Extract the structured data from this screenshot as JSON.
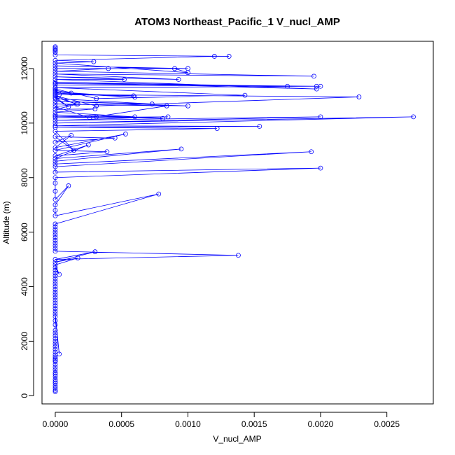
{
  "chart_data": {
    "type": "line",
    "title": "ATOM3 Northeast_Pacific_1 V_nucl_AMP",
    "xlabel": "V_nucl_AMP",
    "ylabel": "Altitude (m)",
    "xlim": [
      -0.0001,
      0.00285
    ],
    "ylim": [
      -300,
      13000
    ],
    "xticks": [
      0,
      0.0005,
      0.001,
      0.0015,
      0.002,
      0.0025
    ],
    "xtick_labels": [
      "0.0000",
      "0.0005",
      "0.0010",
      "0.0015",
      "0.0020",
      "0.0025"
    ],
    "yticks": [
      0,
      2000,
      4000,
      6000,
      8000,
      10000,
      12000
    ],
    "ytick_labels": [
      "0",
      "2000",
      "4000",
      "6000",
      "8000",
      "10000",
      "12000"
    ],
    "grid": false,
    "marker": "open-circle",
    "series_color": "#0000ff",
    "series": [
      {
        "x": [
          0,
          0,
          0,
          0,
          0,
          0,
          0,
          0,
          0,
          0,
          0,
          0,
          0,
          0,
          0,
          0,
          0,
          0,
          0,
          0,
          0,
          0,
          0,
          0,
          0,
          0,
          0,
          0,
          0,
          0,
          3e-05,
          0,
          0,
          0,
          0,
          0,
          0,
          0,
          0,
          0,
          0,
          0,
          0,
          0,
          0,
          0,
          0,
          0,
          0,
          3e-05,
          0,
          0.00017,
          0,
          0.0003,
          0,
          0.00138,
          0,
          0,
          0,
          0,
          0,
          0,
          0,
          0,
          0,
          0,
          0,
          0.00078,
          0,
          0,
          0,
          0.0001,
          0,
          0,
          0,
          0,
          0.002,
          0,
          0,
          0.00193,
          0,
          0,
          0.00095,
          0,
          0.00025,
          0,
          0.00039,
          0,
          0.00053,
          0,
          0.00012,
          0,
          0.00045,
          0,
          0.00014,
          0,
          0.00122,
          0,
          0.00154,
          0,
          0.0027,
          0,
          0.002,
          0,
          0.00085,
          0,
          0.00031,
          0,
          0.00081,
          0,
          0.0006,
          0,
          0.0003,
          0,
          0.00017,
          0,
          0.00026,
          0.00084,
          0,
          0.001,
          0,
          0.00073,
          0,
          0.0001,
          0,
          0.00016,
          0,
          0.00031,
          0.00229,
          0,
          0.00059,
          0,
          0.0006,
          0,
          0.00012,
          0,
          3e-05,
          0,
          0.00031,
          0.00143,
          0,
          0.00197,
          0,
          0.002,
          0,
          0.00175,
          0,
          0.00197,
          0,
          0.00052,
          0,
          0.00093,
          0,
          0.00195,
          0,
          0.0004,
          0,
          0.001,
          0,
          0.0009,
          0.001,
          0,
          0.00029,
          0,
          0.0012,
          0.00131,
          0,
          0,
          0,
          0,
          0,
          0
        ],
        "y": [
          150,
          200,
          280,
          360,
          450,
          520,
          600,
          700,
          780,
          850,
          950,
          1050,
          1150,
          1250,
          1300,
          1350,
          1420,
          1500,
          1600,
          1700,
          1800,
          1900,
          2000,
          2100,
          2200,
          2300,
          2400,
          2600,
          2750,
          2900,
          1530,
          3000,
          3100,
          3200,
          3300,
          3400,
          3500,
          3600,
          3700,
          3800,
          3900,
          4000,
          4100,
          4200,
          4300,
          4400,
          4500,
          4600,
          4700,
          4450,
          4800,
          5050,
          4900,
          5280,
          5000,
          5150,
          5300,
          5400,
          5500,
          5600,
          5700,
          5800,
          5900,
          6000,
          6100,
          6200,
          6300,
          7400,
          6600,
          6800,
          7000,
          7700,
          7200,
          7500,
          7800,
          8000,
          8350,
          8200,
          8400,
          8950,
          8500,
          8600,
          9050,
          8700,
          9200,
          8800,
          8950,
          9000,
          9600,
          9100,
          9550,
          9300,
          9450,
          9500,
          9000,
          9700,
          9800,
          9850,
          9880,
          9900,
          10230,
          10000,
          10230,
          10100,
          10230,
          10200,
          10230,
          10250,
          10170,
          10300,
          10230,
          10400,
          10520,
          10500,
          10700,
          10600,
          10200,
          10630,
          10700,
          10630,
          10800,
          10700,
          10900,
          10600,
          10950,
          10700,
          11000,
          10630,
          10960,
          11050,
          11000,
          11100,
          10950,
          11150,
          11100,
          11200,
          11050,
          11250,
          10900,
          11020,
          11300,
          11350,
          11400,
          11350,
          11450,
          11350,
          11500,
          11250,
          11600,
          11600,
          11700,
          11600,
          11800,
          11720,
          11900,
          12000,
          12000,
          12000,
          12100,
          12000,
          11850,
          12200,
          12250,
          12300,
          12450,
          12450,
          12500,
          12600,
          12650,
          12700,
          12750,
          12800
        ]
      }
    ]
  }
}
